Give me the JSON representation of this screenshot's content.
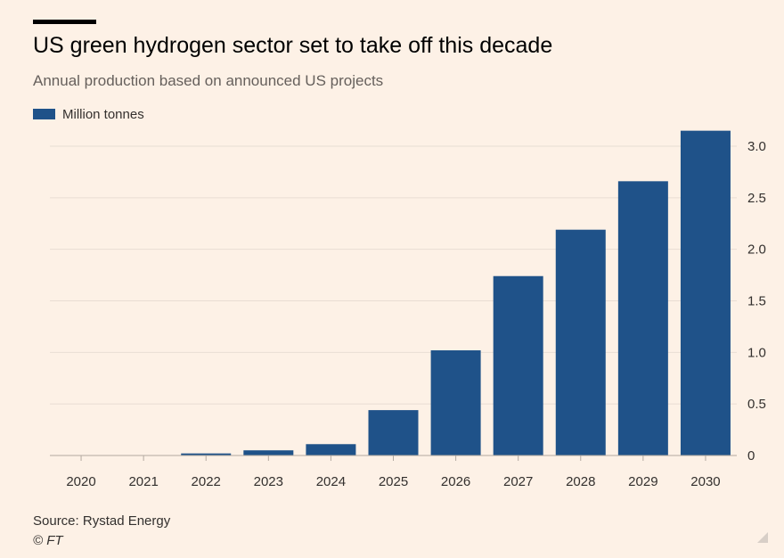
{
  "title": "US green hydrogen sector set to take off this decade",
  "subtitle": "Annual production based on announced US projects",
  "source": "Source: Rystad Energy",
  "credit": "© FT",
  "colors": {
    "bar": "#1f5289",
    "grid": "#e8ddd3",
    "axis": "#b3a9a0",
    "background": "#fdf1e6"
  },
  "chart_data": {
    "type": "bar",
    "categories": [
      "2020",
      "2021",
      "2022",
      "2023",
      "2024",
      "2025",
      "2026",
      "2027",
      "2028",
      "2029",
      "2030"
    ],
    "series": [
      {
        "name": "Million tonnes",
        "values": [
          0,
          0,
          0.02,
          0.05,
          0.11,
          0.44,
          1.02,
          1.74,
          2.19,
          2.66,
          3.15
        ]
      }
    ],
    "yticks": [
      "0",
      "0.5",
      "1.0",
      "1.5",
      "2.0",
      "2.5",
      "3.0"
    ],
    "ylim": [
      0,
      3.1
    ],
    "y_axis_side": "right",
    "grid": true,
    "legend": "top-left"
  }
}
